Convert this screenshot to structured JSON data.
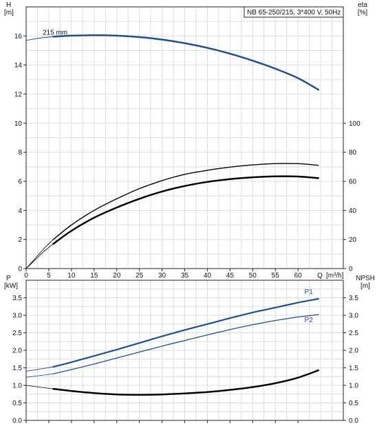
{
  "chart_data": [
    {
      "type": "line",
      "title": "NB 65-250/215, 3*400 V, 50Hz",
      "xlabel": "Q [m³/h]",
      "x_axis_name": "Q",
      "x_unit": "[m³/h]",
      "xlim": [
        0,
        70
      ],
      "x_ticks": [
        0,
        5,
        10,
        15,
        20,
        25,
        30,
        35,
        40,
        45,
        50,
        55,
        60
      ],
      "y_left": {
        "label": "H",
        "unit": "[m]",
        "lim": [
          0,
          18
        ],
        "ticks": [
          0,
          2,
          4,
          6,
          8,
          10,
          12,
          14,
          16
        ]
      },
      "y_right": {
        "label": "eta",
        "unit": "[%]",
        "lim": [
          0,
          180
        ],
        "ticks": [
          0,
          20,
          40,
          60,
          80,
          100
        ]
      },
      "grid": true,
      "series": [
        {
          "name": "215 mm",
          "axis": "left",
          "color": "#1f4e8f",
          "points": [
            [
              0,
              15.7
            ],
            [
              3,
              15.85
            ],
            [
              6,
              15.95
            ],
            [
              10,
              16.02
            ],
            [
              15,
              16.05
            ],
            [
              20,
              16.02
            ],
            [
              25,
              15.92
            ],
            [
              30,
              15.75
            ],
            [
              35,
              15.5
            ],
            [
              40,
              15.18
            ],
            [
              45,
              14.78
            ],
            [
              50,
              14.3
            ],
            [
              55,
              13.75
            ],
            [
              60,
              13.1
            ],
            [
              64.5,
              12.3
            ]
          ]
        },
        {
          "axis": "right",
          "color": "#000000",
          "points": [
            [
              0,
              0
            ],
            [
              2,
              6
            ],
            [
              4,
              12
            ],
            [
              6,
              17
            ],
            [
              10,
              26
            ],
            [
              15,
              35
            ],
            [
              20,
              42
            ],
            [
              25,
              48
            ],
            [
              30,
              53
            ],
            [
              35,
              56.8
            ],
            [
              40,
              59.6
            ],
            [
              45,
              61.5
            ],
            [
              50,
              62.8
            ],
            [
              55,
              63.4
            ],
            [
              60,
              63.3
            ],
            [
              64.5,
              62.2
            ]
          ]
        },
        {
          "axis": "right",
          "color": "#000000",
          "points": [
            [
              0,
              0
            ],
            [
              2,
              7
            ],
            [
              4,
              14
            ],
            [
              6,
              20
            ],
            [
              10,
              30
            ],
            [
              15,
              40
            ],
            [
              20,
              48
            ],
            [
              25,
              55
            ],
            [
              30,
              60.5
            ],
            [
              35,
              64.8
            ],
            [
              40,
              67.6
            ],
            [
              45,
              69.8
            ],
            [
              50,
              71.3
            ],
            [
              55,
              72.2
            ],
            [
              60,
              72.2
            ],
            [
              64.5,
              71.0
            ]
          ]
        }
      ]
    },
    {
      "type": "line",
      "xlim": [
        0,
        70
      ],
      "x_ticks": [
        0,
        5,
        10,
        15,
        20,
        25,
        30,
        35,
        40,
        45,
        50,
        55,
        60
      ],
      "y_left": {
        "label": "P",
        "unit": "[kW]",
        "lim": [
          0,
          4.0
        ],
        "ticks": [
          0.0,
          0.5,
          1.0,
          1.5,
          2.0,
          2.5,
          3.0,
          3.5
        ]
      },
      "y_right": {
        "label": "NPSH",
        "unit": "[m]",
        "lim": [
          0,
          4.0
        ],
        "ticks": [
          0.0,
          0.5,
          1.0,
          1.5,
          2.0,
          2.5,
          3.0,
          3.5
        ]
      },
      "grid": true,
      "series": [
        {
          "name": "P1",
          "axis": "left",
          "color": "#1f4e8f",
          "points": [
            [
              0,
              1.4
            ],
            [
              6,
              1.53
            ],
            [
              10,
              1.66
            ],
            [
              15,
              1.84
            ],
            [
              20,
              2.02
            ],
            [
              25,
              2.21
            ],
            [
              30,
              2.4
            ],
            [
              35,
              2.58
            ],
            [
              40,
              2.75
            ],
            [
              45,
              2.92
            ],
            [
              50,
              3.08
            ],
            [
              55,
              3.22
            ],
            [
              60,
              3.36
            ],
            [
              64.5,
              3.47
            ]
          ]
        },
        {
          "name": "P2",
          "axis": "left",
          "color": "#1f4e8f",
          "points": [
            [
              0,
              1.23
            ],
            [
              6,
              1.33
            ],
            [
              10,
              1.45
            ],
            [
              15,
              1.61
            ],
            [
              20,
              1.78
            ],
            [
              25,
              1.95
            ],
            [
              30,
              2.12
            ],
            [
              35,
              2.28
            ],
            [
              40,
              2.44
            ],
            [
              45,
              2.59
            ],
            [
              50,
              2.73
            ],
            [
              55,
              2.85
            ],
            [
              60,
              2.95
            ],
            [
              64.5,
              3.02
            ]
          ]
        },
        {
          "axis": "right",
          "color": "#000000",
          "points": [
            [
              0,
              1.0
            ],
            [
              6,
              0.9
            ],
            [
              10,
              0.84
            ],
            [
              15,
              0.78
            ],
            [
              20,
              0.74
            ],
            [
              25,
              0.73
            ],
            [
              30,
              0.74
            ],
            [
              35,
              0.77
            ],
            [
              40,
              0.81
            ],
            [
              45,
              0.87
            ],
            [
              50,
              0.95
            ],
            [
              55,
              1.06
            ],
            [
              60,
              1.22
            ],
            [
              64.5,
              1.43
            ]
          ]
        }
      ]
    }
  ]
}
